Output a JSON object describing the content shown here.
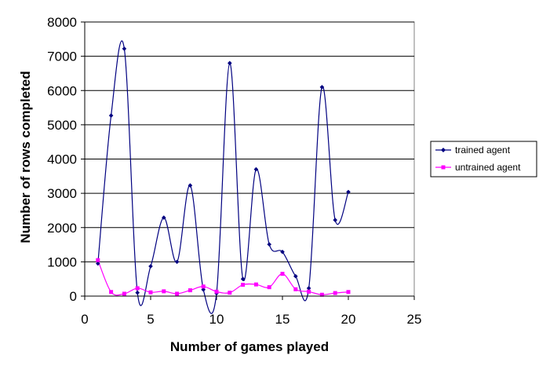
{
  "chart_data": {
    "type": "line",
    "title": "",
    "xlabel": "Number of games played",
    "ylabel": "Number of rows completed",
    "xlim": [
      0,
      25
    ],
    "ylim": [
      0,
      8000
    ],
    "xticks": [
      0,
      5,
      10,
      15,
      20,
      25
    ],
    "yticks": [
      0,
      1000,
      2000,
      3000,
      4000,
      5000,
      6000,
      7000,
      8000
    ],
    "grid": "horizontal",
    "legend_position": "right",
    "series": [
      {
        "name": "trained agent",
        "color": "#000080",
        "marker": "diamond",
        "x": [
          1,
          2,
          3,
          4,
          5,
          6,
          7,
          8,
          9,
          10,
          11,
          12,
          13,
          14,
          15,
          16,
          17,
          18,
          19,
          20
        ],
        "y": [
          950,
          5270,
          7220,
          100,
          870,
          2290,
          1000,
          3230,
          190,
          80,
          6800,
          500,
          3700,
          1510,
          1290,
          580,
          230,
          6100,
          2220,
          3040
        ]
      },
      {
        "name": "untrained agent",
        "color": "#ff00ff",
        "marker": "square",
        "x": [
          1,
          2,
          3,
          4,
          5,
          6,
          7,
          8,
          9,
          10,
          11,
          12,
          13,
          14,
          15,
          16,
          17,
          18,
          19,
          20
        ],
        "y": [
          1050,
          120,
          70,
          230,
          110,
          140,
          70,
          170,
          280,
          130,
          100,
          330,
          340,
          260,
          650,
          200,
          130,
          40,
          90,
          120
        ]
      }
    ]
  }
}
